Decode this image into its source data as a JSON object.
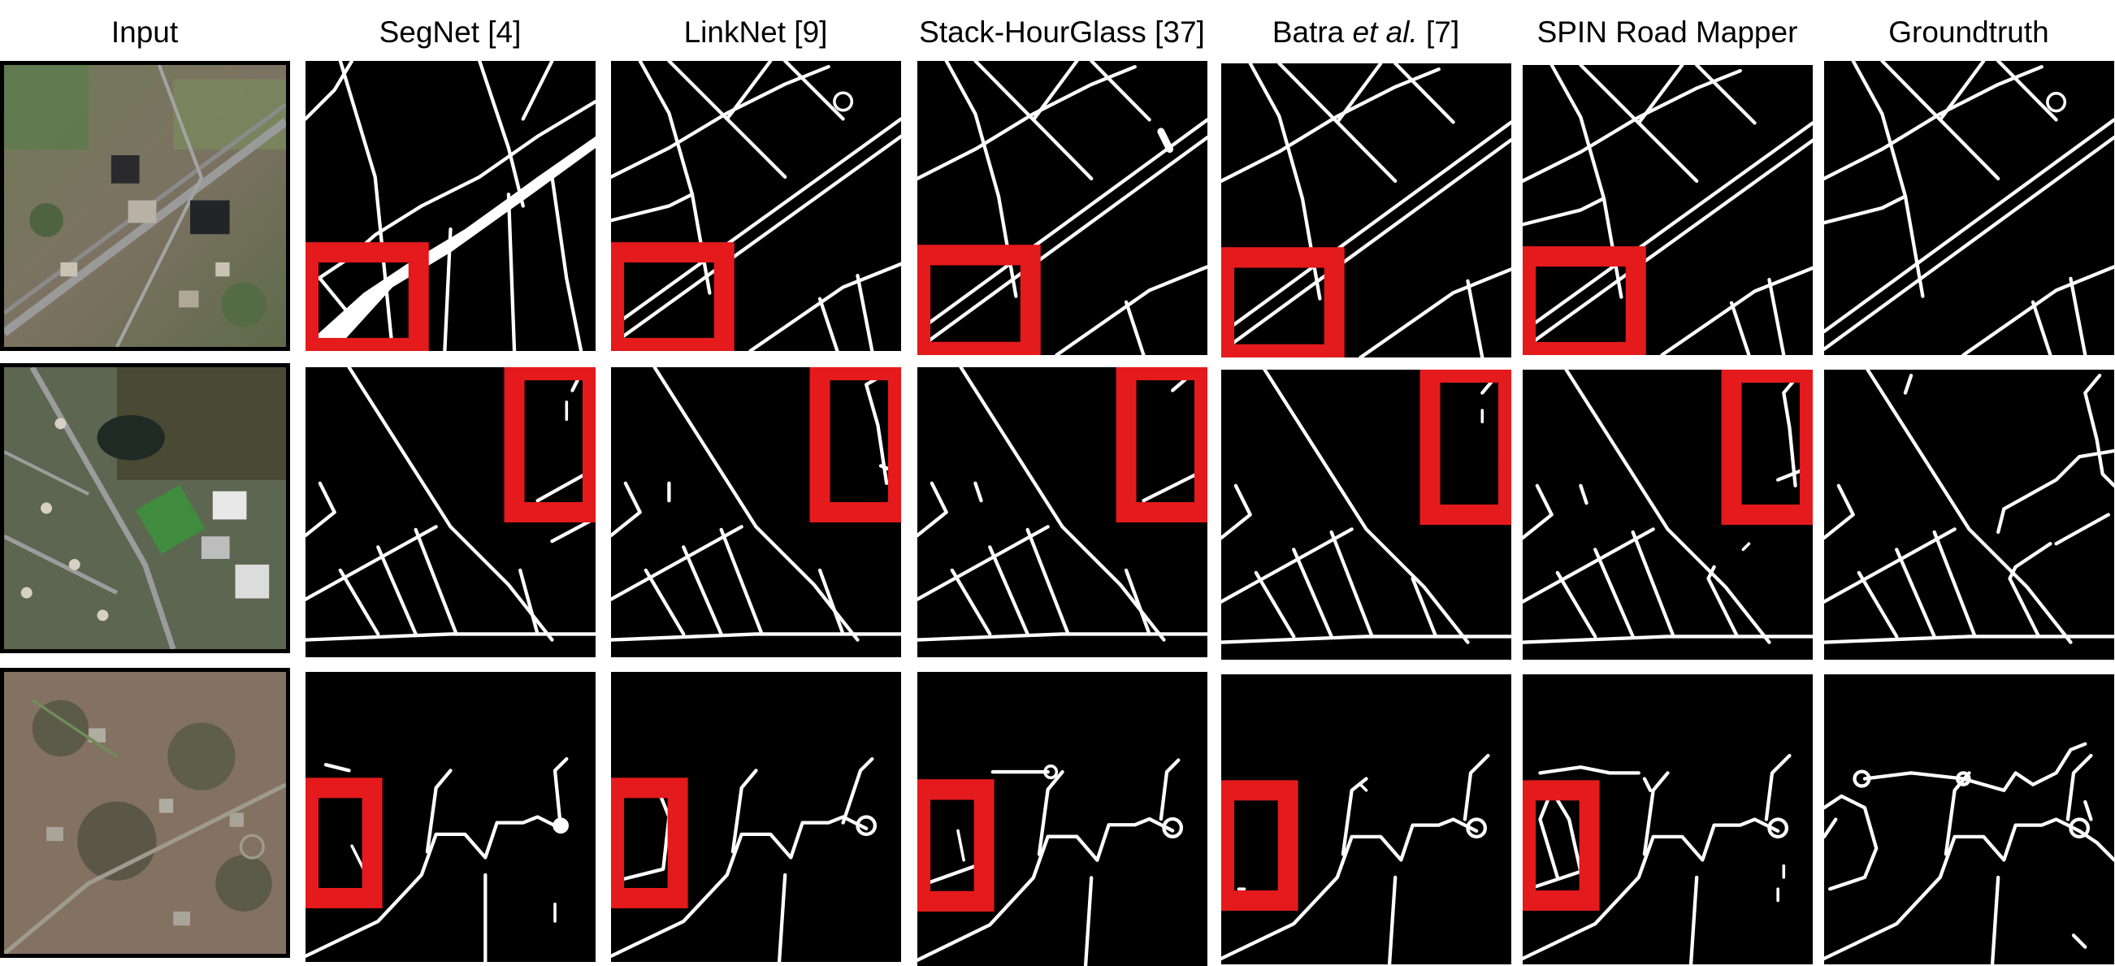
{
  "figure": {
    "columns": [
      {
        "id": "input",
        "title": "Input"
      },
      {
        "id": "segnet",
        "title": "SegNet [4]"
      },
      {
        "id": "linknet",
        "title": "LinkNet [9]"
      },
      {
        "id": "stack",
        "title": "Stack-HourGlass [37]"
      },
      {
        "id": "batra",
        "title_prefix": "Batra ",
        "title_italic": "et al.",
        "title_suffix": " [7]"
      },
      {
        "id": "spin",
        "title": "SPIN Road Mapper"
      },
      {
        "id": "gt",
        "title": "Groundtruth"
      }
    ],
    "rows": 3,
    "highlight_color": "#e41a1c"
  }
}
